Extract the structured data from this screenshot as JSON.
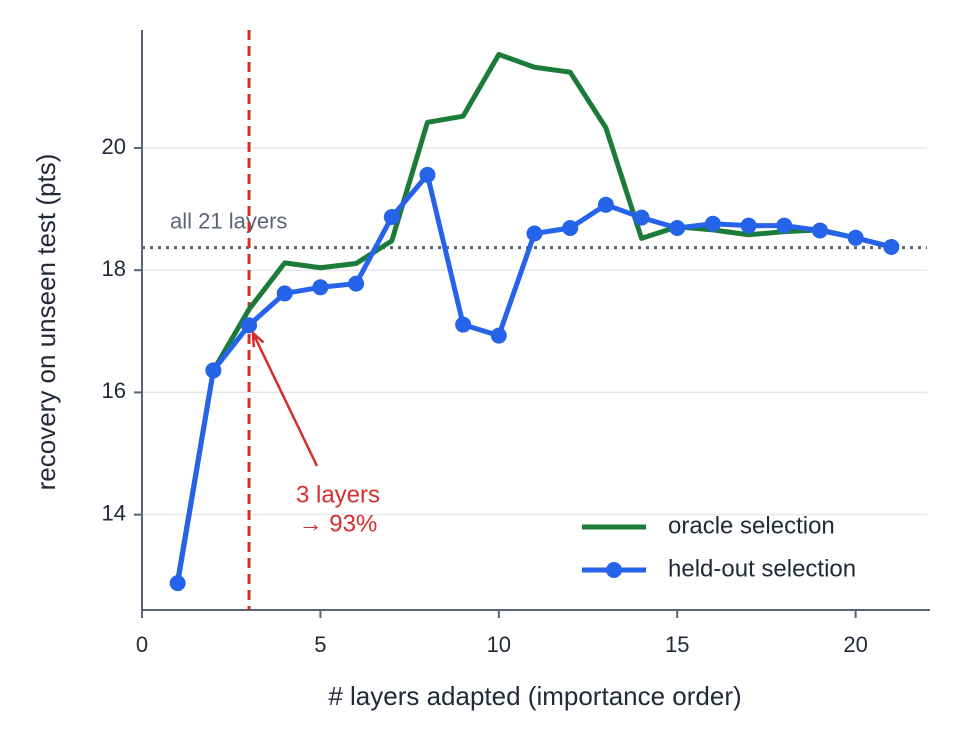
{
  "chart_data": {
    "type": "line",
    "xlabel": "# layers adapted (importance order)",
    "ylabel": "recovery on unseen test (pts)",
    "x": [
      1,
      2,
      3,
      4,
      5,
      6,
      7,
      8,
      9,
      10,
      11,
      12,
      13,
      14,
      15,
      16,
      17,
      18,
      19,
      20,
      21
    ],
    "series": [
      {
        "name": "oracle selection",
        "color": "#1b7c3a",
        "marker": false,
        "values": [
          12.92,
          16.36,
          17.36,
          18.12,
          18.04,
          18.11,
          18.48,
          20.42,
          20.52,
          21.53,
          21.32,
          21.24,
          20.33,
          18.52,
          18.71,
          18.66,
          18.58,
          18.63,
          18.66,
          18.53,
          18.38
        ]
      },
      {
        "name": "held-out selection",
        "color": "#2563eb",
        "marker": true,
        "values": [
          12.88,
          16.36,
          17.1,
          17.62,
          17.72,
          17.78,
          18.87,
          19.56,
          17.11,
          16.93,
          18.6,
          18.69,
          19.07,
          18.86,
          18.69,
          18.76,
          18.73,
          18.73,
          18.65,
          18.53,
          18.38
        ]
      }
    ],
    "xlim": [
      0,
      22
    ],
    "ylim": [
      12.44,
      21.93
    ],
    "xticks": [
      0,
      5,
      10,
      15,
      20
    ],
    "yticks": [
      14,
      16,
      18,
      20
    ],
    "grid": true,
    "legend": "lower right",
    "hline": {
      "value": 18.37,
      "label": "all 21 layers",
      "color": "#5a6478"
    },
    "vline": {
      "value": 3,
      "color": "#d62d2d"
    },
    "annotation": {
      "lines": [
        "3 layers",
        "→  93%"
      ],
      "color": "#d62d2d"
    }
  }
}
